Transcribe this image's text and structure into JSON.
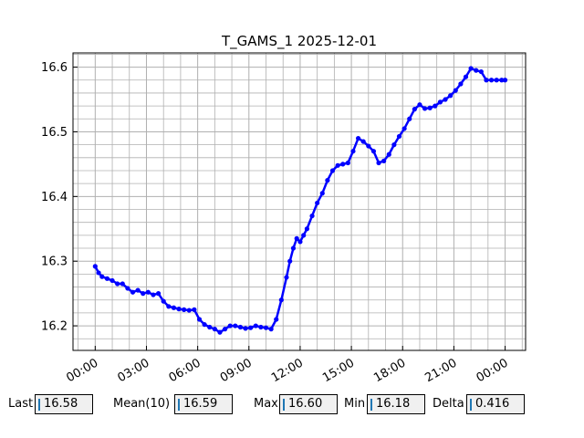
{
  "chart_data": {
    "type": "line",
    "title": "T_GAMS_1 2025-12-01",
    "xlabel": "",
    "ylabel": "",
    "x_ticks": [
      "00:00",
      "03:00",
      "06:00",
      "09:00",
      "12:00",
      "15:00",
      "18:00",
      "21:00",
      "00:00"
    ],
    "y_ticks": [
      "16.2",
      "16.3",
      "16.4",
      "16.5",
      "16.6"
    ],
    "xlim_hours": [
      -1.3,
      25.2
    ],
    "ylim": [
      16.162,
      16.622
    ],
    "grid": true,
    "legend": "none",
    "series": [
      {
        "color": "#0000ff",
        "x_hours": [
          0.0,
          0.2,
          0.4,
          0.7,
          1.0,
          1.3,
          1.6,
          1.9,
          2.2,
          2.5,
          2.8,
          3.1,
          3.4,
          3.7,
          4.0,
          4.3,
          4.6,
          4.9,
          5.2,
          5.5,
          5.8,
          6.1,
          6.4,
          6.7,
          7.0,
          7.3,
          7.6,
          7.9,
          8.2,
          8.5,
          8.8,
          9.1,
          9.4,
          9.7,
          10.0,
          10.3,
          10.6,
          10.9,
          11.2,
          11.4,
          11.6,
          11.8,
          12.0,
          12.2,
          12.4,
          12.7,
          13.0,
          13.3,
          13.6,
          13.9,
          14.2,
          14.5,
          14.8,
          15.1,
          15.4,
          15.7,
          16.0,
          16.3,
          16.6,
          16.9,
          17.2,
          17.5,
          17.8,
          18.1,
          18.4,
          18.7,
          19.0,
          19.3,
          19.6,
          19.9,
          20.2,
          20.5,
          20.8,
          21.1,
          21.4,
          21.7,
          22.0,
          22.3,
          22.6,
          22.9,
          23.2,
          23.5,
          23.8,
          24.0
        ],
        "values": [
          16.292,
          16.282,
          16.276,
          16.273,
          16.27,
          16.265,
          16.265,
          16.258,
          16.252,
          16.255,
          16.25,
          16.252,
          16.248,
          16.25,
          16.238,
          16.23,
          16.228,
          16.226,
          16.225,
          16.224,
          16.225,
          16.21,
          16.202,
          16.198,
          16.195,
          16.19,
          16.195,
          16.2,
          16.2,
          16.198,
          16.196,
          16.197,
          16.2,
          16.198,
          16.197,
          16.195,
          16.21,
          16.24,
          16.275,
          16.3,
          16.32,
          16.335,
          16.33,
          16.34,
          16.35,
          16.37,
          16.39,
          16.405,
          16.425,
          16.44,
          16.448,
          16.45,
          16.452,
          16.47,
          16.49,
          16.485,
          16.478,
          16.47,
          16.452,
          16.455,
          16.465,
          16.48,
          16.493,
          16.505,
          16.52,
          16.535,
          16.542,
          16.536,
          16.537,
          16.54,
          16.546,
          16.55,
          16.556,
          16.564,
          16.574,
          16.585,
          16.598,
          16.595,
          16.593,
          16.58,
          16.58,
          16.58,
          16.58,
          16.58
        ]
      }
    ]
  },
  "stats": [
    {
      "label": "Last",
      "value": "16.58"
    },
    {
      "label": "Mean(10)",
      "value": "16.59"
    },
    {
      "label": "Max",
      "value": "16.60"
    },
    {
      "label": "Min",
      "value": "16.18"
    },
    {
      "label": "Delta",
      "value": "0.416"
    }
  ]
}
